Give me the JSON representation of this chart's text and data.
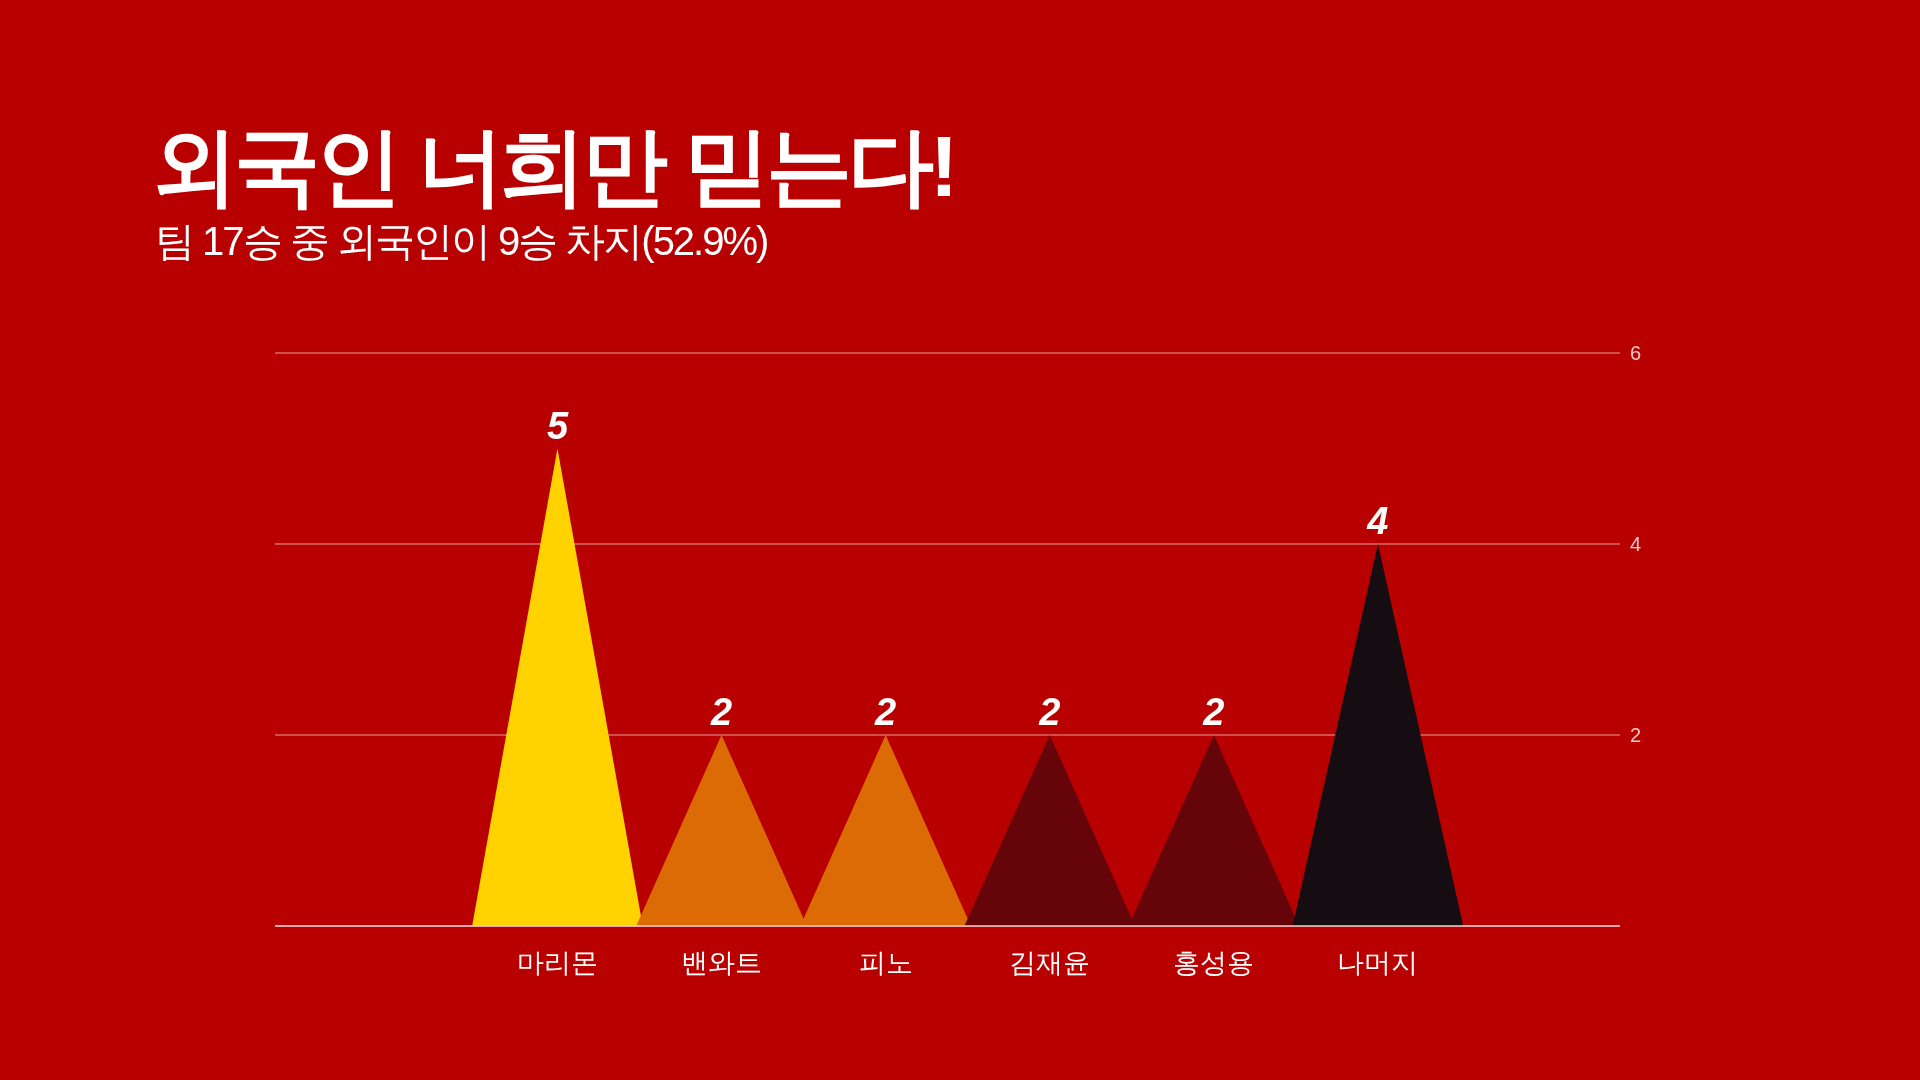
{
  "chart_data": {
    "type": "bar",
    "title": "외국인 너희만 믿는다!",
    "subtitle": "팀 17승 중 외국인이 9승 차지(52.9%)",
    "categories": [
      "마리몬",
      "밴와트",
      "피노",
      "김재윤",
      "홍성용",
      "나머지"
    ],
    "values": [
      5,
      2,
      2,
      2,
      2,
      4
    ],
    "colors": [
      "#ffd200",
      "#dc6b05",
      "#dc6b05",
      "#650509",
      "#650509",
      "#150d12"
    ],
    "ylim": [
      0,
      6
    ],
    "yticks": [
      {
        "value": 0,
        "label": null
      },
      2,
      4,
      6
    ],
    "grid": "y",
    "data_labels": true
  }
}
